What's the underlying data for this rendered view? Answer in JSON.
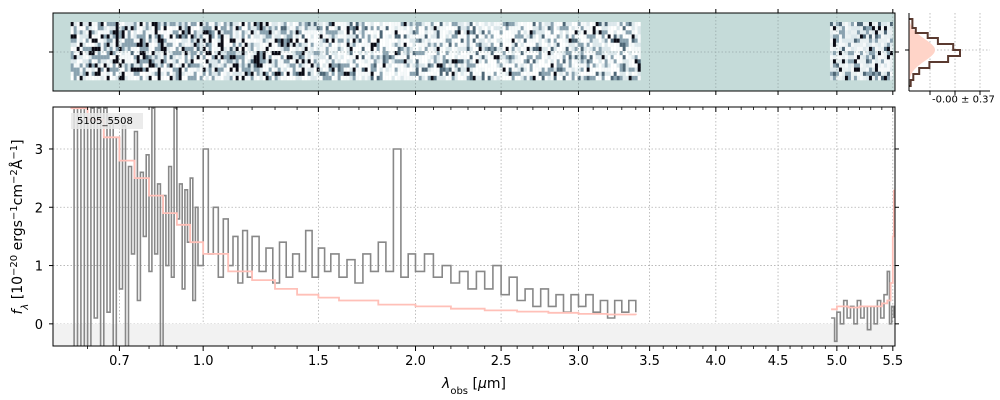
{
  "object_id": "5105_5508",
  "hist_stat": "-0.00 ± 0.37",
  "chart_data": {
    "type": "line",
    "xlabel_html": "λ_obs [μm]",
    "ylabel_html": "f_λ [10^-20 ergs^-1 cm^-2 Å^-1]",
    "xscale": "sqrt",
    "xlim": [
      0.5,
      5.52
    ],
    "ylim": [
      -0.38,
      3.72
    ],
    "x_ticks": [
      0.7,
      1.0,
      1.5,
      2.0,
      2.5,
      3.0,
      3.5,
      4.0,
      4.5,
      5.0,
      5.5
    ],
    "x_tick_labels": [
      "0.7",
      "1.0",
      "1.5",
      "2.0",
      "2.5",
      "3.0",
      "3.5",
      "4.0",
      "4.5",
      "5.0",
      "5.5"
    ],
    "y_ticks": [
      0,
      1,
      2,
      3
    ],
    "y_tick_labels": [
      "0",
      "1",
      "2",
      "3"
    ],
    "grid": true,
    "colors": {
      "flux": "#888888",
      "error": "#ffc0b8",
      "panel_bg": "#c5dbd9",
      "hist": "#5a3a30",
      "hist_fill": "#ffd4c8"
    },
    "series": [
      {
        "role": "flux",
        "segments": [
          [
            [
              0.55,
              3.7
            ],
            [
              0.56,
              -0.4
            ],
            [
              0.57,
              3.7
            ],
            [
              0.58,
              -0.4
            ],
            [
              0.59,
              3.7
            ],
            [
              0.6,
              -0.4
            ],
            [
              0.61,
              3.7
            ],
            [
              0.62,
              0.1
            ],
            [
              0.63,
              3.7
            ],
            [
              0.64,
              -0.4
            ],
            [
              0.65,
              3.7
            ],
            [
              0.66,
              0.2
            ],
            [
              0.67,
              3.5
            ],
            [
              0.68,
              -0.4
            ],
            [
              0.69,
              3.2
            ],
            [
              0.7,
              0.6
            ],
            [
              0.71,
              3.4
            ],
            [
              0.72,
              -0.4
            ],
            [
              0.73,
              2.7
            ],
            [
              0.74,
              1.2
            ],
            [
              0.75,
              3.3
            ],
            [
              0.76,
              0.4
            ],
            [
              0.77,
              2.6
            ],
            [
              0.78,
              1.5
            ],
            [
              0.79,
              2.9
            ],
            [
              0.8,
              0.9
            ],
            [
              0.81,
              3.7
            ],
            [
              0.82,
              1.2
            ],
            [
              0.83,
              2.4
            ],
            [
              0.84,
              -0.4
            ],
            [
              0.85,
              2.2
            ],
            [
              0.86,
              1.0
            ],
            [
              0.87,
              2.7
            ],
            [
              0.88,
              0.8
            ],
            [
              0.89,
              3.7
            ],
            [
              0.9,
              1.8
            ],
            [
              0.91,
              2.4
            ],
            [
              0.92,
              0.6
            ],
            [
              0.93,
              2.3
            ],
            [
              0.94,
              1.4
            ],
            [
              0.95,
              2.5
            ],
            [
              0.96,
              0.4
            ],
            [
              0.97,
              2.0
            ],
            [
              0.98,
              1.0
            ],
            [
              1.0,
              3.0
            ],
            [
              1.02,
              1.2
            ],
            [
              1.04,
              2.0
            ],
            [
              1.06,
              0.8
            ],
            [
              1.08,
              1.8
            ],
            [
              1.1,
              1.0
            ],
            [
              1.12,
              1.5
            ],
            [
              1.14,
              0.7
            ],
            [
              1.16,
              1.6
            ],
            [
              1.18,
              0.8
            ],
            [
              1.2,
              1.5
            ],
            [
              1.23,
              0.9
            ],
            [
              1.26,
              1.3
            ],
            [
              1.29,
              0.7
            ],
            [
              1.32,
              1.4
            ],
            [
              1.35,
              0.8
            ],
            [
              1.38,
              1.2
            ],
            [
              1.41,
              0.9
            ],
            [
              1.44,
              1.6
            ],
            [
              1.47,
              0.8
            ],
            [
              1.5,
              1.3
            ],
            [
              1.53,
              0.9
            ],
            [
              1.56,
              1.2
            ],
            [
              1.6,
              0.8
            ],
            [
              1.64,
              1.1
            ],
            [
              1.68,
              0.7
            ],
            [
              1.72,
              1.2
            ],
            [
              1.76,
              0.9
            ],
            [
              1.8,
              1.4
            ],
            [
              1.84,
              0.9
            ],
            [
              1.88,
              3.0
            ],
            [
              1.92,
              0.8
            ],
            [
              1.96,
              1.2
            ],
            [
              2.0,
              0.9
            ],
            [
              2.05,
              1.2
            ],
            [
              2.1,
              0.8
            ],
            [
              2.15,
              1.0
            ],
            [
              2.2,
              0.7
            ],
            [
              2.25,
              0.9
            ],
            [
              2.3,
              0.6
            ],
            [
              2.35,
              0.9
            ],
            [
              2.4,
              0.6
            ],
            [
              2.45,
              1.0
            ],
            [
              2.5,
              0.5
            ],
            [
              2.55,
              0.8
            ],
            [
              2.6,
              0.4
            ],
            [
              2.65,
              0.6
            ],
            [
              2.7,
              0.3
            ],
            [
              2.75,
              0.6
            ],
            [
              2.8,
              0.3
            ],
            [
              2.85,
              0.5
            ],
            [
              2.9,
              0.2
            ],
            [
              2.95,
              0.5
            ],
            [
              3.0,
              0.3
            ],
            [
              3.05,
              0.5
            ],
            [
              3.1,
              0.2
            ],
            [
              3.15,
              0.4
            ],
            [
              3.2,
              0.1
            ],
            [
              3.25,
              0.4
            ],
            [
              3.3,
              0.2
            ],
            [
              3.35,
              0.4
            ],
            [
              3.4,
              0.2
            ]
          ],
          [
            [
              4.95,
              0.1
            ],
            [
              4.98,
              -0.3
            ],
            [
              5.0,
              0.2
            ],
            [
              5.03,
              0.0
            ],
            [
              5.06,
              0.4
            ],
            [
              5.09,
              0.1
            ],
            [
              5.12,
              0.3
            ],
            [
              5.15,
              0.0
            ],
            [
              5.18,
              0.4
            ],
            [
              5.21,
              0.1
            ],
            [
              5.24,
              0.3
            ],
            [
              5.27,
              -0.1
            ],
            [
              5.3,
              0.3
            ],
            [
              5.33,
              0.0
            ],
            [
              5.36,
              0.4
            ],
            [
              5.39,
              0.1
            ],
            [
              5.42,
              0.5
            ],
            [
              5.45,
              0.9
            ],
            [
              5.47,
              0.0
            ],
            [
              5.49,
              0.3
            ],
            [
              5.51,
              0.1
            ]
          ]
        ]
      },
      {
        "role": "error",
        "segments": [
          [
            [
              0.55,
              3.7
            ],
            [
              0.6,
              3.5
            ],
            [
              0.65,
              3.2
            ],
            [
              0.7,
              2.8
            ],
            [
              0.75,
              2.5
            ],
            [
              0.8,
              2.2
            ],
            [
              0.85,
              1.9
            ],
            [
              0.9,
              1.7
            ],
            [
              0.95,
              1.4
            ],
            [
              1.0,
              1.2
            ],
            [
              1.1,
              0.9
            ],
            [
              1.2,
              0.75
            ],
            [
              1.3,
              0.6
            ],
            [
              1.4,
              0.5
            ],
            [
              1.5,
              0.45
            ],
            [
              1.6,
              0.4
            ],
            [
              1.8,
              0.33
            ],
            [
              2.0,
              0.3
            ],
            [
              2.2,
              0.26
            ],
            [
              2.4,
              0.23
            ],
            [
              2.6,
              0.21
            ],
            [
              2.8,
              0.19
            ],
            [
              3.0,
              0.17
            ],
            [
              3.2,
              0.16
            ],
            [
              3.4,
              0.15
            ]
          ],
          [
            [
              4.95,
              0.25
            ],
            [
              5.0,
              0.3
            ],
            [
              5.1,
              0.28
            ],
            [
              5.2,
              0.3
            ],
            [
              5.3,
              0.3
            ],
            [
              5.4,
              0.35
            ],
            [
              5.45,
              0.4
            ],
            [
              5.48,
              0.7
            ],
            [
              5.5,
              1.5
            ],
            [
              5.51,
              2.3
            ]
          ]
        ]
      }
    ]
  }
}
